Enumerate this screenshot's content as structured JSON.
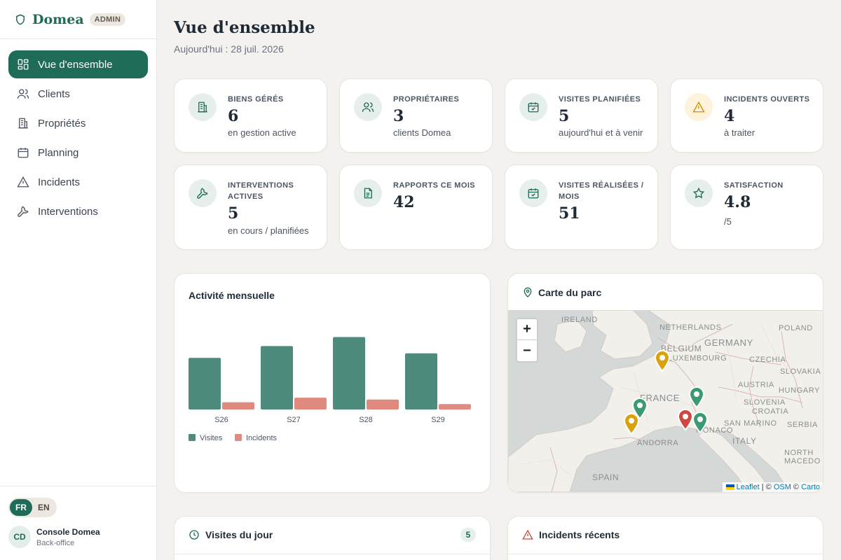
{
  "brand": {
    "name": "Domea",
    "badge": "ADMIN"
  },
  "nav": [
    {
      "label": "Vue d'ensemble",
      "icon": "dashboard-icon",
      "active": true
    },
    {
      "label": "Clients",
      "icon": "users-icon"
    },
    {
      "label": "Propriétés",
      "icon": "building-icon"
    },
    {
      "label": "Planning",
      "icon": "calendar-icon"
    },
    {
      "label": "Incidents",
      "icon": "warning-icon"
    },
    {
      "label": "Interventions",
      "icon": "wrench-icon"
    }
  ],
  "lang": {
    "fr": "FR",
    "en": "EN",
    "selected": "FR"
  },
  "user": {
    "initials": "CD",
    "name": "Console Domea",
    "role": "Back-office"
  },
  "header": {
    "title": "Vue d'ensemble",
    "subtitle": "Aujourd'hui : 28 juil. 2026"
  },
  "stats": [
    {
      "label": "BIENS GÉRÉS",
      "value": "6",
      "caption": "en gestion active",
      "icon": "building-icon"
    },
    {
      "label": "PROPRIÉTAIRES",
      "value": "3",
      "caption": "clients Domea",
      "icon": "users-icon"
    },
    {
      "label": "VISITES PLANIFIÉES",
      "value": "5",
      "caption": "aujourd'hui et à venir",
      "icon": "calendar-check-icon"
    },
    {
      "label": "INCIDENTS OUVERTS",
      "value": "4",
      "caption": "à traiter",
      "icon": "warning-icon"
    },
    {
      "label": "INTERVENTIONS ACTIVES",
      "value": "5",
      "caption": "en cours / planifiées",
      "icon": "wrench-icon"
    },
    {
      "label": "RAPPORTS CE MOIS",
      "value": "42",
      "caption": "",
      "icon": "document-icon"
    },
    {
      "label": "VISITES RÉALISÉES / MOIS",
      "value": "51",
      "caption": "",
      "icon": "calendar-check-icon"
    },
    {
      "label": "SATISFACTION",
      "value": "4.8",
      "caption": "/5",
      "icon": "star-icon"
    }
  ],
  "activity": {
    "title": "Activité mensuelle"
  },
  "chart_data": {
    "type": "bar",
    "categories": [
      "S26",
      "S27",
      "S28",
      "S29"
    ],
    "series": [
      {
        "name": "Visites",
        "values": [
          57,
          70,
          80,
          62
        ],
        "color": "#4d8b7d"
      },
      {
        "name": "Incidents",
        "values": [
          8,
          13,
          11,
          6
        ],
        "color": "#e08a80"
      }
    ],
    "ylim": [
      0,
      85
    ]
  },
  "map": {
    "title": "Carte du parc",
    "zoom_in": "+",
    "zoom_out": "−",
    "labels": [
      "IRELAND",
      "NETHERLANDS",
      "POLAND",
      "BELGIUM",
      "GERMANY",
      "LUXEMBOURG",
      "CZECHIA",
      "SLOVAKIA",
      "AUSTRIA",
      "HUNGARY",
      "FRANCE",
      "SLOVENIA",
      "CROATIA",
      "SERBIA",
      "SAN MARINO",
      "MONACO",
      "ITALY",
      "ANDORRA",
      "NORTH MACEDO",
      "SPAIN"
    ],
    "attribution": {
      "leaflet": "Leaflet",
      "sep1": " | © ",
      "osm": "OSM",
      "sep2": " © ",
      "carto": "Carto"
    }
  },
  "visits_today": {
    "title": "Visites du jour",
    "count": "5"
  },
  "recent_incidents": {
    "title": "Incidents récents"
  },
  "colors": {
    "accent": "#1e6b57",
    "pin_green": "#3a9a72",
    "pin_yellow": "#d9a20a",
    "pin_red": "#d0473f"
  }
}
